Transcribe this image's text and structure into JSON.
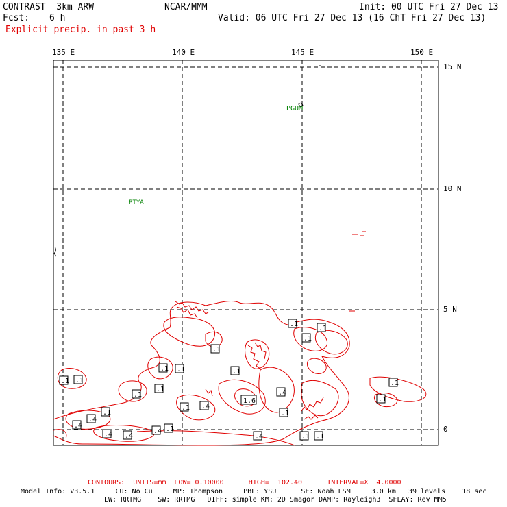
{
  "header": {
    "model": "CONTRAST  3km ARW",
    "org": "NCAR/MMM",
    "init": "Init: 00 UTC Fri 27 Dec 13",
    "fcst_label": "Fcst:",
    "fcst_value": "6 h",
    "valid": "Valid: 06 UTC Fri 27 Dec 13 (16 ChT Fri 27 Dec 13)",
    "field": "Explicit precip. in past 3 h"
  },
  "axes": {
    "lon_labels": [
      "135 E",
      "140 E",
      "145 E",
      "150 E"
    ],
    "lat_labels": [
      "15 N",
      "10 N",
      "5 N",
      "0"
    ]
  },
  "stations": [
    "PGUM",
    "PTYA"
  ],
  "contour_labels": [
    ".1",
    ".1",
    ".1",
    ".1",
    ".1",
    ".1",
    ".1",
    ".1",
    ".1",
    ".1",
    ".1",
    ".1",
    ".1",
    ".1",
    ".1",
    ".1",
    ".4",
    ".4",
    ".4",
    ".4",
    ".4",
    ".4",
    ".4",
    ".4",
    "1.6",
    ".1",
    ".1",
    ".1",
    ".1",
    ".1",
    ".1"
  ],
  "footer": {
    "contours": "CONTOURS:  UNITS=mm  LOW= 0.10000      HIGH=  102.40      INTERVAL=X  4.0000",
    "model_info_1": "Model Info: V3.5.1     CU: No Cu     MP: Thompson     PBL: YSU      SF: Noah LSM     3.0 km   39 levels    18 sec",
    "model_info_2": "LW: RRTMG    SW: RRTMG   DIFF: simple KM: 2D Smagor DAMP: Rayleigh3  SFLAY: Rev MM5"
  },
  "colors": {
    "contour": "#e00000",
    "station": "#008000",
    "grid": "#000000"
  }
}
